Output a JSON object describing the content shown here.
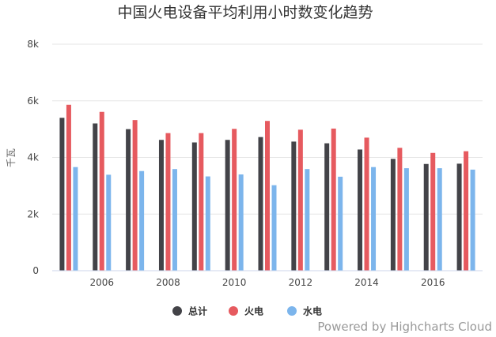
{
  "chart_data": {
    "type": "bar",
    "title": "中国火电设备平均利用小时数变化趋势",
    "ylabel": "千瓦",
    "ylim": [
      0,
      8000
    ],
    "yticks": [
      "0",
      "2k",
      "4k",
      "6k",
      "8k"
    ],
    "x": [
      2005,
      2006,
      2007,
      2008,
      2009,
      2010,
      2011,
      2012,
      2013,
      2014,
      2015,
      2016,
      2017
    ],
    "xtick_labels": [
      "2006",
      "2008",
      "2010",
      "2012",
      "2014",
      "2016"
    ],
    "series": [
      {
        "name": "总计",
        "color": "#434348",
        "values": [
          5400,
          5200,
          5000,
          4620,
          4530,
          4620,
          4720,
          4560,
          4500,
          4280,
          3950,
          3770,
          3780
        ]
      },
      {
        "name": "火电",
        "color": "#e65a5f",
        "values": [
          5860,
          5610,
          5320,
          4860,
          4860,
          5010,
          5290,
          4980,
          5020,
          4700,
          4340,
          4160,
          4220
        ]
      },
      {
        "name": "水电",
        "color": "#7cb5ec",
        "values": [
          3660,
          3390,
          3520,
          3590,
          3330,
          3400,
          3020,
          3590,
          3320,
          3660,
          3620,
          3620,
          3570
        ]
      }
    ],
    "grid": true,
    "legend_position": "bottom-center"
  },
  "credit": "Powered by Highcharts Cloud"
}
